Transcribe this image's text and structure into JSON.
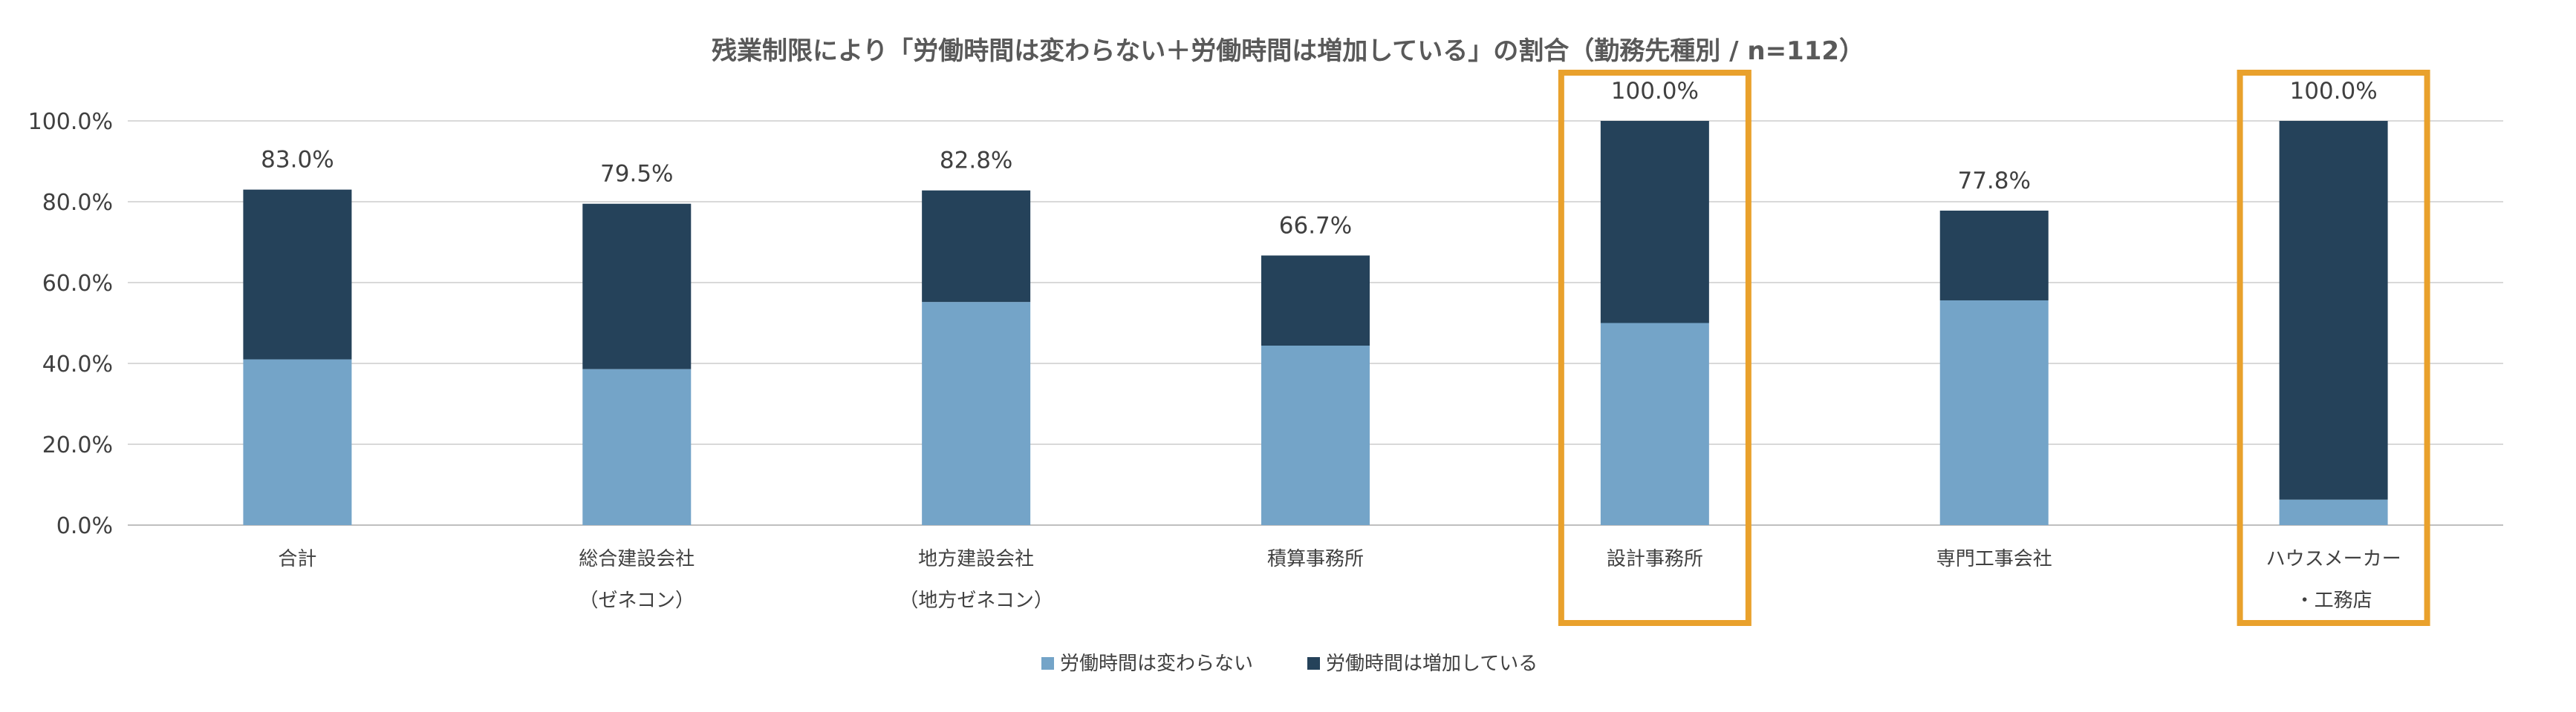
{
  "chart_data": {
    "type": "bar",
    "stacked": true,
    "title": "残業制限により「労働時間は変わらない＋労働時間は増加している」の割合（勤務先種別 / n=112）",
    "categories": [
      [
        "合計"
      ],
      [
        "総合建設会社",
        "（ゼネコン）"
      ],
      [
        "地方建設会社",
        "（地方ゼネコン）"
      ],
      [
        "積算事務所"
      ],
      [
        "設計事務所"
      ],
      [
        "専門工事会社"
      ],
      [
        "ハウスメーカー",
        "・工務店"
      ]
    ],
    "series": [
      {
        "name": "労働時間は変わらない",
        "color": "#74A4C8",
        "values": [
          41.0,
          38.6,
          55.2,
          44.4,
          50.0,
          55.6,
          6.3
        ]
      },
      {
        "name": "労働時間は増加している",
        "color": "#25425A",
        "values": [
          42.0,
          40.9,
          27.6,
          22.3,
          50.0,
          22.2,
          93.7
        ]
      }
    ],
    "totals": [
      "83.0%",
      "79.5%",
      "82.8%",
      "66.7%",
      "100.0%",
      "77.8%",
      "100.0%"
    ],
    "y_ticks": [
      "0.0%",
      "20.0%",
      "40.0%",
      "60.0%",
      "80.0%",
      "100.0%"
    ],
    "ylim": [
      0,
      100
    ],
    "highlighted_categories": [
      4,
      6
    ],
    "highlight_color": "#E9A12C",
    "grid": true,
    "legend_position": "bottom"
  }
}
